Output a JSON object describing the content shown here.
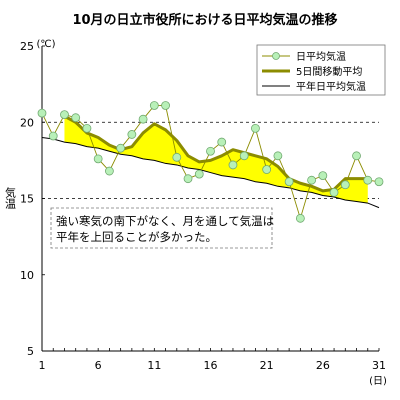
{
  "chart_data": {
    "type": "line",
    "title": "10月の日立市役所における日平均気温の推移",
    "xlabel": "(日)",
    "ylabel": "気温",
    "yunit": "(℃)",
    "xlim": [
      1,
      31
    ],
    "ylim": [
      5,
      25
    ],
    "x_ticks": [
      1,
      6,
      11,
      16,
      21,
      26,
      31
    ],
    "y_ticks": [
      5,
      10,
      15,
      20,
      25
    ],
    "y_gridlines": [
      15,
      20
    ],
    "grid_style": "dashed",
    "legend_position": "top-right",
    "fill_between": {
      "upper": "5日間移動平均",
      "lower": "平年日平均気温",
      "color": "#ffff00"
    },
    "x": [
      1,
      2,
      3,
      4,
      5,
      6,
      7,
      8,
      9,
      10,
      11,
      12,
      13,
      14,
      15,
      16,
      17,
      18,
      19,
      20,
      21,
      22,
      23,
      24,
      25,
      26,
      27,
      28,
      29,
      30,
      31
    ],
    "series": [
      {
        "name": "日平均気温",
        "color": "#8c8c00",
        "marker": "circle",
        "marker_fill": "#b8f0b8",
        "values": [
          20.6,
          19.1,
          20.5,
          20.3,
          19.6,
          17.6,
          16.8,
          18.3,
          19.2,
          20.2,
          21.1,
          21.1,
          17.7,
          16.3,
          16.6,
          18.1,
          18.7,
          17.2,
          17.8,
          19.6,
          16.9,
          17.8,
          16.1,
          13.7,
          16.2,
          16.5,
          15.4,
          15.9,
          17.8,
          16.2,
          16.1
        ]
      },
      {
        "name": "5日間移動平均",
        "color": "#8c8c00",
        "values": [
          null,
          null,
          20.4,
          20.0,
          19.3,
          19.0,
          18.5,
          18.2,
          18.4,
          19.3,
          19.9,
          19.5,
          18.8,
          17.8,
          17.4,
          17.5,
          17.8,
          18.2,
          18.0,
          17.8,
          17.6,
          17.1,
          16.3,
          16.0,
          15.8,
          15.5,
          15.6,
          16.3,
          16.3,
          16.3,
          null
        ]
      },
      {
        "name": "平年日平均気温",
        "color": "#000000",
        "values": [
          19.0,
          18.9,
          18.7,
          18.6,
          18.4,
          18.3,
          18.1,
          17.9,
          17.8,
          17.6,
          17.5,
          17.3,
          17.2,
          17.0,
          16.9,
          16.7,
          16.5,
          16.4,
          16.3,
          16.1,
          16.0,
          15.8,
          15.7,
          15.5,
          15.4,
          15.2,
          15.1,
          14.9,
          14.8,
          14.7,
          14.4
        ]
      }
    ],
    "annotation": "強い寒気の南下がなく、月を通して気温は平年を上回ることが多かった。",
    "annotation_lines": [
      "強い寒気の南下がなく、月を通して気温は",
      "平年を上回ることが多かった。"
    ]
  }
}
